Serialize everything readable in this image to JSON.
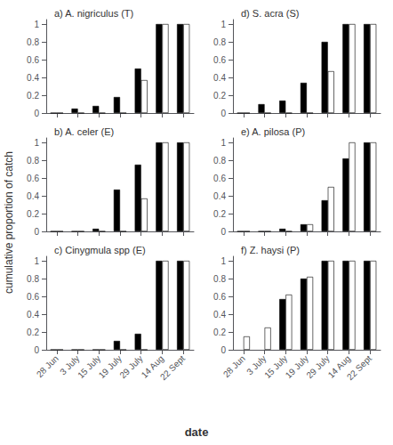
{
  "ylabel": "cumulative proportion of catch",
  "xlabel": "date",
  "chart_data": [
    {
      "type": "bar",
      "title": "a) A. nigriculus (T)",
      "categories": [
        "28 Jun",
        "3 July",
        "15 July",
        "19 July",
        "29 July",
        "14 Aug",
        "22 Sept"
      ],
      "series": [
        {
          "color": "black",
          "values": [
            0,
            0.05,
            0.08,
            0.18,
            0.5,
            1.0,
            1.0
          ]
        },
        {
          "color": "white",
          "values": [
            0,
            0,
            0,
            0,
            0.37,
            1.0,
            1.0
          ]
        }
      ],
      "ylim": [
        0,
        1.05
      ],
      "yticks": [
        0,
        0.2,
        0.4,
        0.6,
        0.8,
        1
      ],
      "grid": false,
      "tick_labels": "y"
    },
    {
      "type": "bar",
      "title": "d) S. acra (S)",
      "categories": [
        "28 Jun",
        "3 July",
        "15 July",
        "19 July",
        "29 July",
        "14 Aug",
        "22 Sept"
      ],
      "series": [
        {
          "color": "black",
          "values": [
            0,
            0.1,
            0.14,
            0.34,
            0.8,
            1.0,
            1.0
          ]
        },
        {
          "color": "white",
          "values": [
            0,
            0,
            0,
            0,
            0.47,
            1.0,
            1.0
          ]
        }
      ],
      "ylim": [
        0,
        1.05
      ],
      "yticks": [
        0,
        0.2,
        0.4,
        0.6,
        0.8,
        1
      ],
      "grid": false,
      "tick_labels": "y"
    },
    {
      "type": "bar",
      "title": "b) A. celer (E)",
      "categories": [
        "28 Jun",
        "3 July",
        "15 July",
        "19 July",
        "29 July",
        "14 Aug",
        "22 Sept"
      ],
      "series": [
        {
          "color": "black",
          "values": [
            0,
            0,
            0.03,
            0.47,
            0.75,
            1.0,
            1.0
          ]
        },
        {
          "color": "white",
          "values": [
            0,
            0,
            0,
            0,
            0.37,
            1.0,
            1.0
          ]
        }
      ],
      "ylim": [
        0,
        1.05
      ],
      "yticks": [
        0,
        0.2,
        0.4,
        0.6,
        0.8,
        1
      ],
      "grid": false,
      "tick_labels": "y"
    },
    {
      "type": "bar",
      "title": "e) A. pilosa (P)",
      "categories": [
        "28 Jun",
        "3 July",
        "15 July",
        "19 July",
        "29 July",
        "14 Aug",
        "22 Sept"
      ],
      "series": [
        {
          "color": "black",
          "values": [
            0,
            0,
            0.03,
            0.08,
            0.35,
            0.82,
            1.0
          ]
        },
        {
          "color": "white",
          "values": [
            0,
            0,
            0,
            0.08,
            0.5,
            1.0,
            1.0
          ]
        }
      ],
      "ylim": [
        0,
        1.05
      ],
      "yticks": [
        0,
        0.2,
        0.4,
        0.6,
        0.8,
        1
      ],
      "grid": false,
      "tick_labels": "y"
    },
    {
      "type": "bar",
      "title": "c) Cinygmula spp (E)",
      "categories": [
        "28 Jun",
        "3 July",
        "15 July",
        "19 July",
        "29 July",
        "14 Aug",
        "22 Sept"
      ],
      "series": [
        {
          "color": "black",
          "values": [
            0,
            0,
            0,
            0.1,
            0.18,
            1.0,
            1.0
          ]
        },
        {
          "color": "white",
          "values": [
            0,
            0,
            0,
            0,
            0,
            1.0,
            1.0
          ]
        }
      ],
      "ylim": [
        0,
        1.05
      ],
      "yticks": [
        0,
        0.2,
        0.4,
        0.6,
        0.8,
        1
      ],
      "grid": false
    },
    {
      "type": "bar",
      "title": "f) Z. haysi (P)",
      "categories": [
        "28 Jun",
        "3 July",
        "15 July",
        "19 July",
        "29 July",
        "14 Aug",
        "22 Sept"
      ],
      "series": [
        {
          "color": "black",
          "values": [
            null,
            null,
            0.57,
            0.8,
            1.0,
            1.0,
            1.0
          ]
        },
        {
          "color": "white",
          "values": [
            0.15,
            0.25,
            0.62,
            0.82,
            1.0,
            1.0,
            1.0
          ]
        }
      ],
      "ylim": [
        0,
        1.05
      ],
      "yticks": [
        0,
        0.2,
        0.4,
        0.6,
        0.8,
        1
      ],
      "grid": false
    }
  ]
}
